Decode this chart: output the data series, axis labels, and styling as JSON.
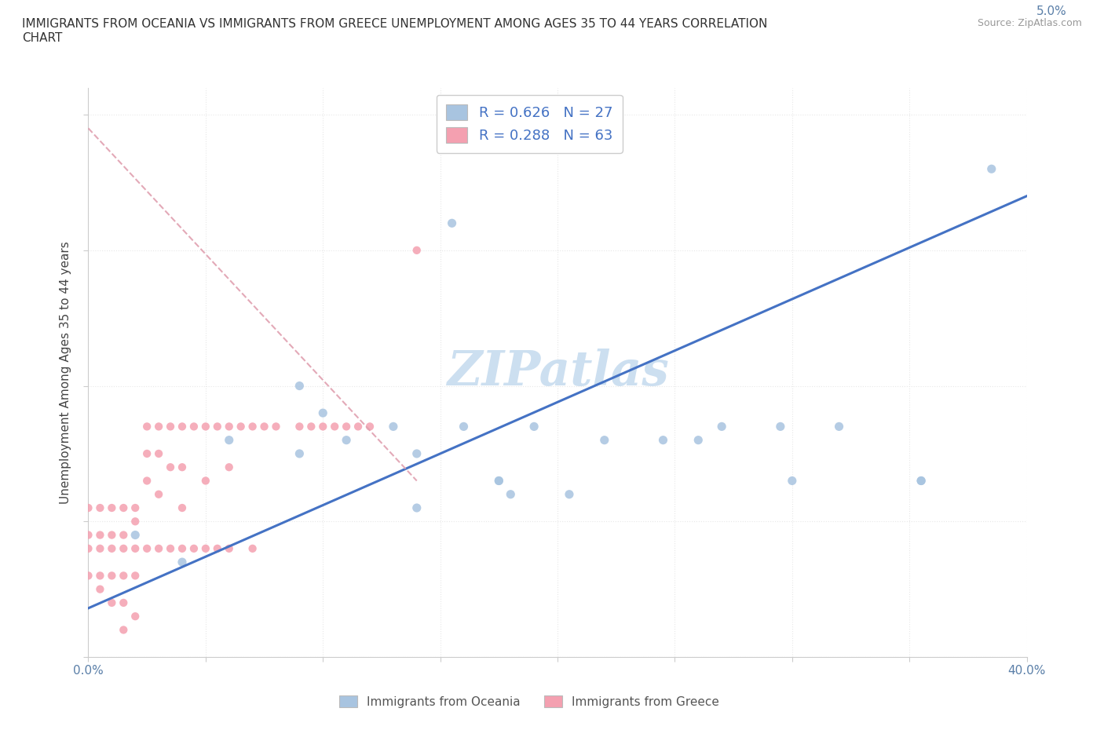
{
  "title": "IMMIGRANTS FROM OCEANIA VS IMMIGRANTS FROM GREECE UNEMPLOYMENT AMONG AGES 35 TO 44 YEARS CORRELATION\nCHART",
  "source": "Source: ZipAtlas.com",
  "ylabel": "Unemployment Among Ages 35 to 44 years",
  "xlim": [
    0.0,
    0.4
  ],
  "ylim": [
    0.0,
    0.21
  ],
  "x_ticks": [
    0.0,
    0.05,
    0.1,
    0.15,
    0.2,
    0.25,
    0.3,
    0.35,
    0.4
  ],
  "y_ticks": [
    0.0,
    0.05,
    0.1,
    0.15,
    0.2
  ],
  "oceania_color": "#a8c4e0",
  "greece_color": "#f4a0b0",
  "line_color": "#4472c4",
  "dashed_line_color": "#e0a0b0",
  "legend_R_oceania": "0.626",
  "legend_N_oceania": "27",
  "legend_R_greece": "0.288",
  "legend_N_greece": "63",
  "oceania_x": [
    0.02,
    0.06,
    0.09,
    0.1,
    0.11,
    0.13,
    0.14,
    0.155,
    0.16,
    0.175,
    0.19,
    0.205,
    0.22,
    0.245,
    0.26,
    0.27,
    0.295,
    0.3,
    0.32,
    0.355,
    0.355,
    0.385,
    0.04,
    0.09,
    0.14,
    0.175,
    0.18
  ],
  "oceania_y": [
    0.045,
    0.08,
    0.075,
    0.09,
    0.08,
    0.085,
    0.055,
    0.16,
    0.085,
    0.065,
    0.085,
    0.06,
    0.08,
    0.08,
    0.08,
    0.085,
    0.085,
    0.065,
    0.085,
    0.065,
    0.065,
    0.18,
    0.035,
    0.1,
    0.075,
    0.065,
    0.06
  ],
  "greece_x": [
    0.0,
    0.0,
    0.0,
    0.0,
    0.005,
    0.005,
    0.005,
    0.005,
    0.005,
    0.01,
    0.01,
    0.01,
    0.01,
    0.01,
    0.015,
    0.015,
    0.015,
    0.015,
    0.015,
    0.015,
    0.02,
    0.02,
    0.02,
    0.02,
    0.02,
    0.025,
    0.025,
    0.025,
    0.025,
    0.03,
    0.03,
    0.03,
    0.03,
    0.035,
    0.035,
    0.035,
    0.04,
    0.04,
    0.04,
    0.04,
    0.045,
    0.045,
    0.05,
    0.05,
    0.05,
    0.055,
    0.055,
    0.06,
    0.06,
    0.06,
    0.065,
    0.07,
    0.07,
    0.075,
    0.08,
    0.09,
    0.095,
    0.1,
    0.105,
    0.11,
    0.115,
    0.12,
    0.14
  ],
  "greece_y": [
    0.055,
    0.045,
    0.04,
    0.03,
    0.055,
    0.045,
    0.04,
    0.03,
    0.025,
    0.055,
    0.045,
    0.04,
    0.03,
    0.02,
    0.055,
    0.045,
    0.04,
    0.03,
    0.02,
    0.01,
    0.055,
    0.05,
    0.04,
    0.03,
    0.015,
    0.085,
    0.075,
    0.065,
    0.04,
    0.085,
    0.075,
    0.06,
    0.04,
    0.085,
    0.07,
    0.04,
    0.085,
    0.07,
    0.055,
    0.04,
    0.085,
    0.04,
    0.085,
    0.065,
    0.04,
    0.085,
    0.04,
    0.085,
    0.07,
    0.04,
    0.085,
    0.085,
    0.04,
    0.085,
    0.085,
    0.085,
    0.085,
    0.085,
    0.085,
    0.085,
    0.085,
    0.085,
    0.15
  ],
  "oceania_line_x0": 0.0,
  "oceania_line_y0": 0.018,
  "oceania_line_x1": 0.4,
  "oceania_line_y1": 0.17,
  "greece_line_x0": 0.0,
  "greece_line_y0": 0.195,
  "greece_line_x1": 0.14,
  "greece_line_y1": 0.065,
  "watermark": "ZIPatlas",
  "watermark_color": "#ccdff0",
  "background_color": "#ffffff",
  "grid_color": "#e8e8e8"
}
